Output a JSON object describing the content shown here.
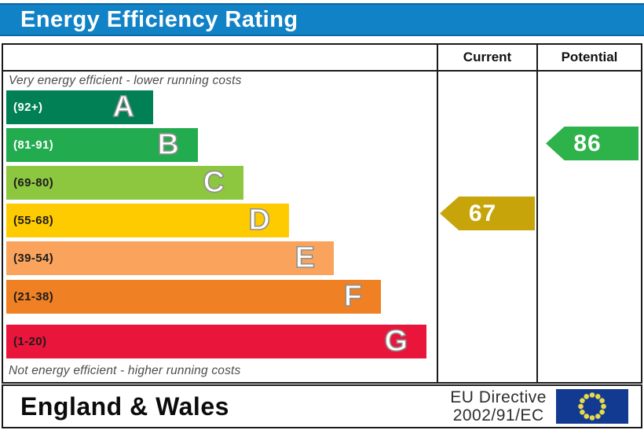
{
  "title": "Energy Efficiency Rating",
  "table": {
    "current_header": "Current",
    "potential_header": "Potential"
  },
  "captions": {
    "top": "Very energy efficient - lower running costs",
    "bottom": "Not energy efficient - higher running costs"
  },
  "bands": [
    {
      "letter": "A",
      "range": "(92+)",
      "color": "#008054",
      "label_color": "#ffffff"
    },
    {
      "letter": "B",
      "range": "(81-91)",
      "color": "#22ac4f",
      "label_color": "#ffffff"
    },
    {
      "letter": "C",
      "range": "(69-80)",
      "color": "#8dc63f",
      "label_color": "#1d1d1d"
    },
    {
      "letter": "D",
      "range": "(55-68)",
      "color": "#fecb00",
      "label_color": "#1d1d1d"
    },
    {
      "letter": "E",
      "range": "(39-54)",
      "color": "#f9a35d",
      "label_color": "#1d1d1d"
    },
    {
      "letter": "F",
      "range": "(21-38)",
      "color": "#ef8023",
      "label_color": "#1d1d1d"
    },
    {
      "letter": "G",
      "range": "(1-20)",
      "color": "#e9153b",
      "label_color": "#1d1d1d"
    }
  ],
  "ratings": {
    "current": {
      "label": "Current",
      "value": "67",
      "band": "D",
      "color": "#c7a50a"
    },
    "potential": {
      "label": "Potential",
      "value": "86",
      "band": "B",
      "color": "#2eb24a"
    }
  },
  "footer": {
    "region": "England & Wales",
    "directive_line1": "EU Directive",
    "directive_line2": "2002/91/EC",
    "eu_flag": {
      "background": "#123a91",
      "star_color": "#e8d94a",
      "stars": 12
    }
  },
  "theme": {
    "title_bg": "#1182c6",
    "title_text": "#ffffff",
    "border": "#1a1a1a",
    "caption_color": "#4d4d4d"
  },
  "chart_data": {
    "type": "bar",
    "title": "Energy Efficiency Rating",
    "categories": [
      "A",
      "B",
      "C",
      "D",
      "E",
      "F",
      "G"
    ],
    "band_ranges": [
      "(92+)",
      "(81-91)",
      "(69-80)",
      "(55-68)",
      "(39-54)",
      "(21-38)",
      "(1-20)"
    ],
    "band_colors": [
      "#008054",
      "#22ac4f",
      "#8dc63f",
      "#fecb00",
      "#f9a35d",
      "#ef8023",
      "#e9153b"
    ],
    "series": [
      {
        "name": "Current",
        "value": 67,
        "band": "D"
      },
      {
        "name": "Potential",
        "value": 86,
        "band": "B"
      }
    ],
    "annotations": [
      "Very energy efficient - lower running costs",
      "Not energy efficient - higher running costs"
    ],
    "footer_text": [
      "England & Wales",
      "EU Directive 2002/91/EC"
    ],
    "value_range": [
      1,
      100
    ]
  }
}
